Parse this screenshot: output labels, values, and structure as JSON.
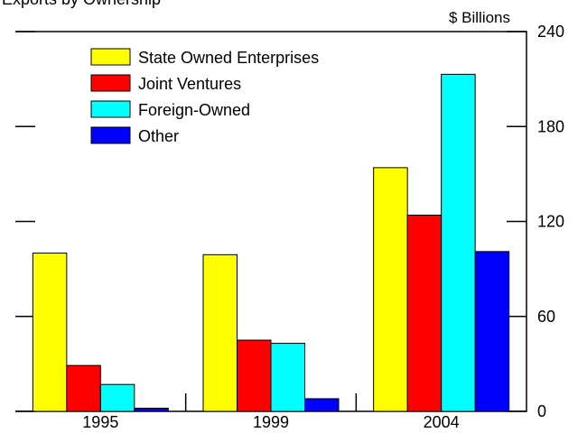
{
  "chart_data": {
    "type": "bar",
    "title": "Exports by Ownership",
    "unit_label": "$ Billions",
    "categories": [
      "1995",
      "1999",
      "2004"
    ],
    "series": [
      {
        "name": "State Owned Enterprises",
        "color": "#ffff00",
        "values": [
          100,
          99,
          154
        ]
      },
      {
        "name": "Joint Ventures",
        "color": "#ff0000",
        "values": [
          29,
          45,
          124
        ]
      },
      {
        "name": "Foreign-Owned",
        "color": "#00ffff",
        "values": [
          17,
          43,
          213
        ]
      },
      {
        "name": "Other",
        "color": "#0000ff",
        "values": [
          2,
          8,
          101
        ]
      }
    ],
    "ylim": [
      0,
      240
    ],
    "yticks": [
      "0",
      "60",
      "120",
      "180",
      "240"
    ],
    "grid": false,
    "legend": "top-left"
  }
}
